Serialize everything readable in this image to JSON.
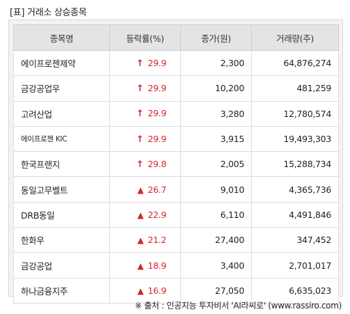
{
  "caption": "[표] 거래소 상승종목",
  "table": {
    "headers": [
      "종목명",
      "등락률(%)",
      "종가(원)",
      "거래량(주)"
    ],
    "rows": [
      {
        "name": "에이프로젠제약",
        "arrow": "↑",
        "arrow_type": "up",
        "rate": "29.9",
        "price": "2,300",
        "volume": "64,876,274"
      },
      {
        "name": "금강공업우",
        "arrow": "↑",
        "arrow_type": "up",
        "rate": "29.9",
        "price": "10,200",
        "volume": "481,259"
      },
      {
        "name": "고려산업",
        "arrow": "↑",
        "arrow_type": "up",
        "rate": "29.9",
        "price": "3,280",
        "volume": "12,780,574"
      },
      {
        "name": "에이프로젠 KIC",
        "arrow": "↑",
        "arrow_type": "up",
        "rate": "29.9",
        "price": "3,915",
        "volume": "19,493,303",
        "small": true
      },
      {
        "name": "한국프랜지",
        "arrow": "↑",
        "arrow_type": "up",
        "rate": "29.8",
        "price": "2,005",
        "volume": "15,288,734"
      },
      {
        "name": "동일고무벨트",
        "arrow": "▲",
        "arrow_type": "tri",
        "rate": "26.7",
        "price": "9,010",
        "volume": "4,365,736"
      },
      {
        "name": "DRB동일",
        "arrow": "▲",
        "arrow_type": "tri",
        "rate": "22.9",
        "price": "6,110",
        "volume": "4,491,846"
      },
      {
        "name": "한화우",
        "arrow": "▲",
        "arrow_type": "tri",
        "rate": "21.2",
        "price": "27,400",
        "volume": "347,452"
      },
      {
        "name": "금강공업",
        "arrow": "▲",
        "arrow_type": "tri",
        "rate": "18.9",
        "price": "3,400",
        "volume": "2,701,017"
      },
      {
        "name": "하나금융지주",
        "arrow": "▲",
        "arrow_type": "tri",
        "rate": "16.9",
        "price": "27,050",
        "volume": "6,635,023"
      }
    ]
  },
  "source": "※ 출처 : 인공지능 투자비서 'AI라씨로' (www.rassiro.com)",
  "colors": {
    "rise": "#d4262b",
    "header_bg": "#e4e4e4"
  }
}
